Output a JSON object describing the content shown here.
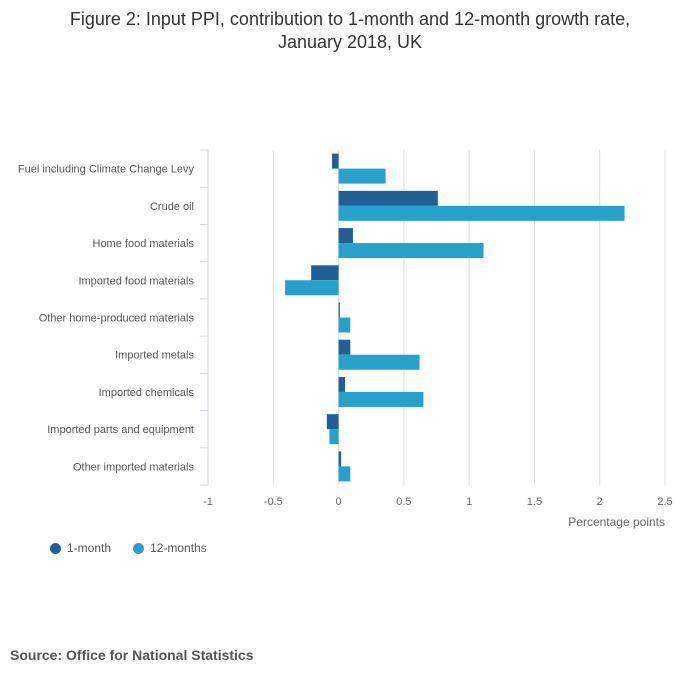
{
  "chart_data": {
    "type": "bar",
    "orientation": "horizontal",
    "title": "Figure 2: Input PPI, contribution to 1-month and 12-month growth rate, January 2018, UK",
    "title_lines": [
      "Figure 2: Input PPI, contribution to 1-month and 12-month growth rate,",
      "January 2018, UK"
    ],
    "categories": [
      "Fuel including Climate Change Levy",
      "Crude oil",
      "Home food materials",
      "Imported food materials",
      "Other home-produced materials",
      "Imported metals",
      "Imported chemicals",
      "Imported parts and equipment",
      "Other imported materials"
    ],
    "series": [
      {
        "name": "1-month",
        "color": "#206095",
        "values": [
          -0.05,
          0.76,
          0.11,
          -0.21,
          0.01,
          0.09,
          0.05,
          -0.09,
          0.02
        ]
      },
      {
        "name": "12-months",
        "color": "#27a0cc",
        "values": [
          0.36,
          2.19,
          1.11,
          -0.41,
          0.09,
          0.62,
          0.65,
          -0.07,
          0.09
        ]
      }
    ],
    "xlabel": "Percentage points",
    "xlim": [
      -1,
      2.5
    ],
    "xticks": [
      -1,
      -0.5,
      0,
      0.5,
      1,
      1.5,
      2,
      2.5
    ],
    "xtick_labels": [
      "-1",
      "-0.5",
      "0",
      "0.5",
      "1",
      "1.5",
      "2",
      "2.5"
    ],
    "grid": true,
    "legend_position": "bottom-left"
  },
  "source": "Source: Office for National Statistics"
}
